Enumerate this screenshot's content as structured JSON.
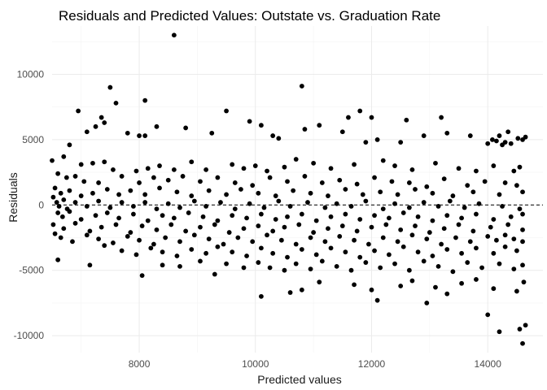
{
  "chart_data": {
    "type": "scatter",
    "title": "Residuals and Predicted Values: Outstate vs. Graduation Rate",
    "xlabel": "Predicted values",
    "ylabel": "Residuals",
    "xlim": [
      6500,
      14950
    ],
    "ylim": [
      -11300,
      13700
    ],
    "xticks": [
      8000,
      10000,
      12000,
      14000
    ],
    "xtick_labels": [
      "8000",
      "10000",
      "12000",
      "14000"
    ],
    "yticks": [
      -10000,
      -5000,
      0,
      5000,
      10000
    ],
    "ytick_labels": [
      "-10000",
      "-5000",
      "0",
      "5000",
      "10000"
    ],
    "grid": true,
    "reference_line": {
      "y": 0,
      "style": "dashed"
    },
    "point_color": "#000000",
    "points": [
      [
        8600,
        13000
      ],
      [
        7500,
        9000
      ],
      [
        10800,
        9100
      ],
      [
        8100,
        8000
      ],
      [
        7600,
        7800
      ],
      [
        6950,
        7200
      ],
      [
        7350,
        6700
      ],
      [
        9500,
        7200
      ],
      [
        11800,
        7200
      ],
      [
        13200,
        6700
      ],
      [
        12600,
        6500
      ],
      [
        7400,
        6300
      ],
      [
        9900,
        6400
      ],
      [
        10100,
        6100
      ],
      [
        11100,
        6100
      ],
      [
        11600,
        6700
      ],
      [
        12000,
        6700
      ],
      [
        7250,
        6000
      ],
      [
        7100,
        5600
      ],
      [
        7800,
        5500
      ],
      [
        8000,
        5300
      ],
      [
        8100,
        5300
      ],
      [
        8300,
        6000
      ],
      [
        8800,
        5900
      ],
      [
        9250,
        5500
      ],
      [
        10300,
        5300
      ],
      [
        10400,
        5100
      ],
      [
        10850,
        5800
      ],
      [
        11500,
        5600
      ],
      [
        11900,
        4800
      ],
      [
        12100,
        5000
      ],
      [
        12500,
        4800
      ],
      [
        12900,
        5300
      ],
      [
        13300,
        5500
      ],
      [
        13700,
        5300
      ],
      [
        14000,
        4700
      ],
      [
        14080,
        5000
      ],
      [
        14150,
        4900
      ],
      [
        14200,
        5300
      ],
      [
        14250,
        4600
      ],
      [
        14300,
        4800
      ],
      [
        14350,
        5600
      ],
      [
        14400,
        4700
      ],
      [
        14520,
        5100
      ],
      [
        14600,
        5000
      ],
      [
        14650,
        5200
      ],
      [
        6800,
        4600
      ],
      [
        6700,
        3700
      ],
      [
        6500,
        3400
      ],
      [
        7000,
        3100
      ],
      [
        7200,
        3200
      ],
      [
        7400,
        3300
      ],
      [
        7550,
        2700
      ],
      [
        7950,
        2600
      ],
      [
        8150,
        2800
      ],
      [
        8350,
        3000
      ],
      [
        8600,
        2700
      ],
      [
        8900,
        3300
      ],
      [
        9150,
        2700
      ],
      [
        9600,
        3100
      ],
      [
        9800,
        2800
      ],
      [
        10000,
        3000
      ],
      [
        10200,
        2600
      ],
      [
        10500,
        2900
      ],
      [
        10700,
        3500
      ],
      [
        11000,
        3200
      ],
      [
        11300,
        2800
      ],
      [
        11700,
        3100
      ],
      [
        12200,
        3400
      ],
      [
        12400,
        3000
      ],
      [
        12700,
        2700
      ],
      [
        13100,
        3200
      ],
      [
        13500,
        2800
      ],
      [
        13800,
        2600
      ],
      [
        14100,
        3000
      ],
      [
        14450,
        2600
      ],
      [
        14550,
        2900
      ],
      [
        6600,
        2400
      ],
      [
        6750,
        2100
      ],
      [
        6900,
        2200
      ],
      [
        7050,
        1800
      ],
      [
        7300,
        1700
      ],
      [
        7700,
        2200
      ],
      [
        8000,
        1700
      ],
      [
        8250,
        2100
      ],
      [
        8500,
        1900
      ],
      [
        8750,
        2200
      ],
      [
        9050,
        1800
      ],
      [
        9350,
        2100
      ],
      [
        9650,
        1700
      ],
      [
        9950,
        1500
      ],
      [
        10250,
        2100
      ],
      [
        10550,
        1800
      ],
      [
        10850,
        2200
      ],
      [
        11150,
        1700
      ],
      [
        11450,
        1900
      ],
      [
        11750,
        1600
      ],
      [
        12050,
        2100
      ],
      [
        12350,
        1800
      ],
      [
        12650,
        1700
      ],
      [
        12950,
        1400
      ],
      [
        13250,
        2000
      ],
      [
        13650,
        1500
      ],
      [
        13950,
        1800
      ],
      [
        14300,
        1700
      ],
      [
        14500,
        1500
      ],
      [
        6550,
        1300
      ],
      [
        6650,
        900
      ],
      [
        6800,
        1100
      ],
      [
        7000,
        700
      ],
      [
        7200,
        900
      ],
      [
        7450,
        1200
      ],
      [
        7650,
        800
      ],
      [
        7850,
        1100
      ],
      [
        8100,
        800
      ],
      [
        8350,
        1300
      ],
      [
        8650,
        1000
      ],
      [
        8900,
        700
      ],
      [
        9200,
        1100
      ],
      [
        9500,
        800
      ],
      [
        9750,
        1200
      ],
      [
        10050,
        900
      ],
      [
        10350,
        700
      ],
      [
        10650,
        1100
      ],
      [
        10950,
        900
      ],
      [
        11250,
        700
      ],
      [
        11550,
        1200
      ],
      [
        11850,
        800
      ],
      [
        12150,
        1000
      ],
      [
        12450,
        800
      ],
      [
        12750,
        1200
      ],
      [
        13050,
        900
      ],
      [
        13400,
        700
      ],
      [
        13750,
        1000
      ],
      [
        14200,
        800
      ],
      [
        14600,
        1000
      ],
      [
        6520,
        600
      ],
      [
        6580,
        200
      ],
      [
        6620,
        -100
      ],
      [
        6700,
        400
      ],
      [
        6760,
        -300
      ],
      [
        6900,
        200
      ],
      [
        7100,
        -100
      ],
      [
        7300,
        300
      ],
      [
        7500,
        -200
      ],
      [
        7700,
        200
      ],
      [
        7900,
        -100
      ],
      [
        8100,
        200
      ],
      [
        8300,
        -300
      ],
      [
        8500,
        100
      ],
      [
        8700,
        -200
      ],
      [
        8950,
        300
      ],
      [
        9150,
        -100
      ],
      [
        9400,
        200
      ],
      [
        9650,
        -300
      ],
      [
        9900,
        100
      ],
      [
        10150,
        -200
      ],
      [
        10400,
        300
      ],
      [
        10600,
        -100
      ],
      [
        10900,
        200
      ],
      [
        11200,
        -200
      ],
      [
        11400,
        100
      ],
      [
        11650,
        -100
      ],
      [
        11900,
        300
      ],
      [
        12200,
        -300
      ],
      [
        12400,
        100
      ],
      [
        12650,
        -200
      ],
      [
        12900,
        200
      ],
      [
        13150,
        -100
      ],
      [
        13350,
        300
      ],
      [
        13600,
        -200
      ],
      [
        13850,
        100
      ],
      [
        14250,
        -100
      ],
      [
        14550,
        -300
      ],
      [
        6600,
        -600
      ],
      [
        6680,
        -900
      ],
      [
        6800,
        -500
      ],
      [
        7000,
        -1100
      ],
      [
        7250,
        -800
      ],
      [
        7450,
        -600
      ],
      [
        7650,
        -1000
      ],
      [
        7900,
        -700
      ],
      [
        8150,
        -1200
      ],
      [
        8400,
        -800
      ],
      [
        8600,
        -1000
      ],
      [
        8850,
        -600
      ],
      [
        9100,
        -900
      ],
      [
        9350,
        -1200
      ],
      [
        9600,
        -800
      ],
      [
        9850,
        -1000
      ],
      [
        10100,
        -700
      ],
      [
        10350,
        -1100
      ],
      [
        10550,
        -900
      ],
      [
        10800,
        -700
      ],
      [
        11050,
        -1200
      ],
      [
        11300,
        -900
      ],
      [
        11550,
        -700
      ],
      [
        11800,
        -1100
      ],
      [
        12050,
        -800
      ],
      [
        12300,
        -1000
      ],
      [
        12550,
        -600
      ],
      [
        12800,
        -900
      ],
      [
        13050,
        -1200
      ],
      [
        13300,
        -800
      ],
      [
        13550,
        -1000
      ],
      [
        13800,
        -700
      ],
      [
        14100,
        -1100
      ],
      [
        14400,
        -900
      ],
      [
        14600,
        -700
      ],
      [
        6520,
        -1500
      ],
      [
        6700,
        -1800
      ],
      [
        6900,
        -1400
      ],
      [
        7150,
        -2000
      ],
      [
        7350,
        -1700
      ],
      [
        7600,
        -1500
      ],
      [
        7850,
        -2100
      ],
      [
        8050,
        -1600
      ],
      [
        8300,
        -1900
      ],
      [
        8550,
        -1500
      ],
      [
        8800,
        -2000
      ],
      [
        9050,
        -1700
      ],
      [
        9300,
        -1500
      ],
      [
        9550,
        -2100
      ],
      [
        9800,
        -1800
      ],
      [
        10050,
        -1600
      ],
      [
        10300,
        -2000
      ],
      [
        10500,
        -1700
      ],
      [
        10750,
        -1500
      ],
      [
        11000,
        -2100
      ],
      [
        11250,
        -1800
      ],
      [
        11500,
        -1600
      ],
      [
        11750,
        -2000
      ],
      [
        12000,
        -1700
      ],
      [
        12250,
        -1500
      ],
      [
        12500,
        -1900
      ],
      [
        12750,
        -1600
      ],
      [
        13000,
        -2100
      ],
      [
        13250,
        -1800
      ],
      [
        13500,
        -1500
      ],
      [
        13750,
        -2000
      ],
      [
        14050,
        -1700
      ],
      [
        14350,
        -1500
      ],
      [
        14600,
        -1900
      ],
      [
        6550,
        -2200
      ],
      [
        6650,
        -2500
      ],
      [
        6850,
        -2800
      ],
      [
        7100,
        -2300
      ],
      [
        7300,
        -2600
      ],
      [
        7550,
        -2900
      ],
      [
        7800,
        -2400
      ],
      [
        8000,
        -2700
      ],
      [
        8250,
        -3000
      ],
      [
        8450,
        -2500
      ],
      [
        8700,
        -2800
      ],
      [
        8950,
        -2300
      ],
      [
        9200,
        -2600
      ],
      [
        9450,
        -3000
      ],
      [
        9700,
        -2500
      ],
      [
        9950,
        -2800
      ],
      [
        10200,
        -2300
      ],
      [
        10450,
        -2700
      ],
      [
        10700,
        -3000
      ],
      [
        10950,
        -2500
      ],
      [
        11200,
        -2800
      ],
      [
        11450,
        -2400
      ],
      [
        11700,
        -2700
      ],
      [
        11950,
        -3000
      ],
      [
        12200,
        -2500
      ],
      [
        12450,
        -2800
      ],
      [
        12700,
        -2300
      ],
      [
        12950,
        -2600
      ],
      [
        13200,
        -3000
      ],
      [
        13450,
        -2500
      ],
      [
        13700,
        -2800
      ],
      [
        14000,
        -2400
      ],
      [
        14150,
        -2700
      ],
      [
        14300,
        -2300
      ],
      [
        14450,
        -2600
      ],
      [
        14600,
        -2800
      ],
      [
        6600,
        -4200
      ],
      [
        7150,
        -4600
      ],
      [
        7400,
        -3100
      ],
      [
        7700,
        -3500
      ],
      [
        7950,
        -3800
      ],
      [
        8200,
        -3300
      ],
      [
        8400,
        -3600
      ],
      [
        8650,
        -3900
      ],
      [
        8900,
        -3400
      ],
      [
        9150,
        -3700
      ],
      [
        9350,
        -3200
      ],
      [
        9600,
        -3600
      ],
      [
        9850,
        -3900
      ],
      [
        10100,
        -3300
      ],
      [
        10300,
        -3700
      ],
      [
        10550,
        -4000
      ],
      [
        10800,
        -3400
      ],
      [
        11050,
        -3800
      ],
      [
        11300,
        -3300
      ],
      [
        11550,
        -3600
      ],
      [
        11800,
        -4000
      ],
      [
        12050,
        -3500
      ],
      [
        12300,
        -3800
      ],
      [
        12550,
        -3200
      ],
      [
        12800,
        -3600
      ],
      [
        13050,
        -3900
      ],
      [
        13300,
        -3400
      ],
      [
        13550,
        -3700
      ],
      [
        13800,
        -3300
      ],
      [
        14100,
        -3700
      ],
      [
        14300,
        -3200
      ],
      [
        14500,
        -3500
      ],
      [
        8050,
        -5400
      ],
      [
        8400,
        -4600
      ],
      [
        8700,
        -4700
      ],
      [
        9050,
        -4300
      ],
      [
        9300,
        -5300
      ],
      [
        9500,
        -4500
      ],
      [
        9800,
        -4800
      ],
      [
        10050,
        -4400
      ],
      [
        10250,
        -4800
      ],
      [
        10500,
        -5000
      ],
      [
        10700,
        -4500
      ],
      [
        10950,
        -4900
      ],
      [
        11150,
        -4300
      ],
      [
        11400,
        -4700
      ],
      [
        11650,
        -5000
      ],
      [
        11900,
        -4400
      ],
      [
        12150,
        -4800
      ],
      [
        12400,
        -4500
      ],
      [
        12650,
        -5000
      ],
      [
        12900,
        -4300
      ],
      [
        13150,
        -4700
      ],
      [
        13400,
        -5100
      ],
      [
        13650,
        -4400
      ],
      [
        13900,
        -4800
      ],
      [
        14200,
        -4500
      ],
      [
        14450,
        -4900
      ],
      [
        14600,
        -4600
      ],
      [
        10100,
        -7000
      ],
      [
        10600,
        -6700
      ],
      [
        10800,
        -6500
      ],
      [
        11100,
        -5900
      ],
      [
        11700,
        -6100
      ],
      [
        12000,
        -6500
      ],
      [
        12100,
        -7300
      ],
      [
        12500,
        -6200
      ],
      [
        12700,
        -5800
      ],
      [
        12950,
        -7500
      ],
      [
        13100,
        -6300
      ],
      [
        13300,
        -6800
      ],
      [
        13550,
        -6000
      ],
      [
        13800,
        -5700
      ],
      [
        14100,
        -6400
      ],
      [
        14500,
        -6600
      ],
      [
        14620,
        -5900
      ],
      [
        14000,
        -8400
      ],
      [
        14200,
        -9700
      ],
      [
        14550,
        -9500
      ],
      [
        14600,
        -10600
      ],
      [
        14650,
        -9200
      ]
    ]
  }
}
